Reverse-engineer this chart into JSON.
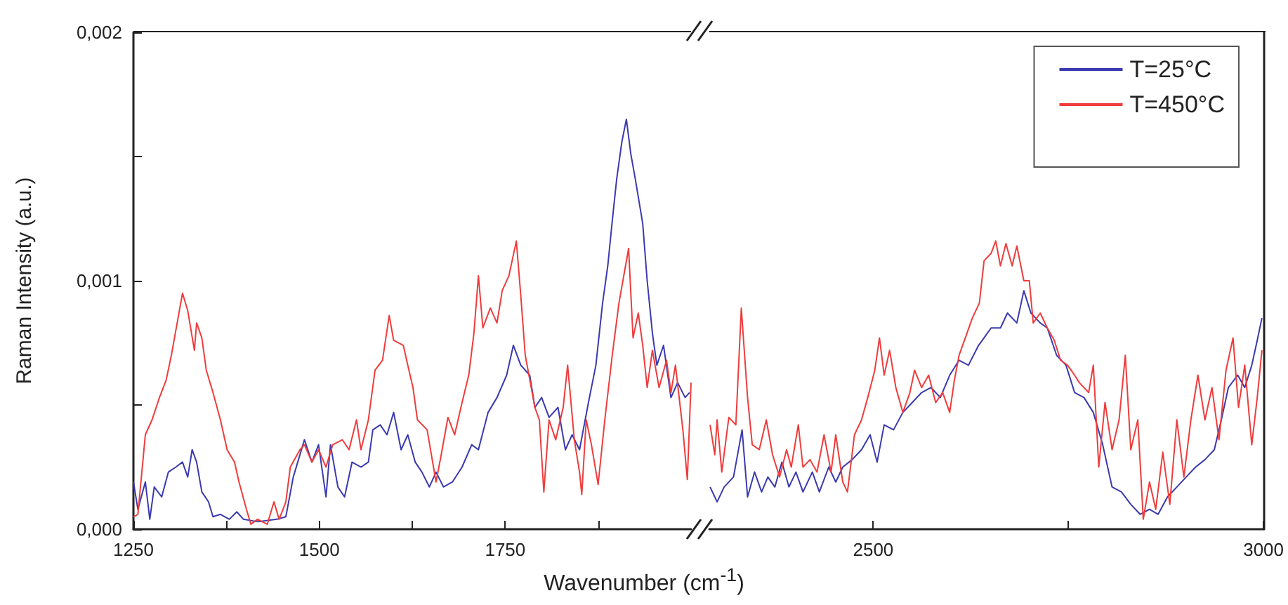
{
  "chart_data": [
    {
      "type": "line",
      "ylabel": "Raman Intensity (a.u.)",
      "xlabel": "Wavenumber (cm$^{-1}$)",
      "xlim": [
        1250,
        2000
      ],
      "xticks": [
        1250,
        {
          "value": 1375,
          "label": null
        },
        1500,
        {
          "value": 1625,
          "label": null
        },
        1750,
        {
          "value": 1875,
          "label": null
        }
      ],
      "ylim": [
        0,
        0.002
      ],
      "yticks": [
        {
          "value": 0,
          "label": "0,000"
        },
        {
          "value": 0.0005,
          "label": null
        },
        {
          "value": 0.001,
          "label": "0,001"
        },
        {
          "value": 0.0015,
          "label": null
        },
        {
          "value": 0.002,
          "label": "0,002"
        }
      ],
      "grid": false,
      "legend": false,
      "series": [
        {
          "color": "#3a3ab0",
          "x": [
            1250,
            1256,
            1266,
            1272,
            1278,
            1288,
            1297,
            1307,
            1316,
            1323,
            1329,
            1335,
            1342,
            1351,
            1357,
            1367,
            1379,
            1389,
            1398,
            1417,
            1443,
            1455,
            1465,
            1474,
            1480,
            1490,
            1499,
            1509,
            1515,
            1525,
            1534,
            1544,
            1556,
            1566,
            1572,
            1582,
            1591,
            1600,
            1610,
            1619,
            1629,
            1638,
            1648,
            1657,
            1667,
            1679,
            1692,
            1705,
            1714,
            1727,
            1739,
            1752,
            1761,
            1771,
            1783,
            1790,
            1799,
            1809,
            1821,
            1831,
            1840,
            1850,
            1862,
            1872,
            1881,
            1888,
            1894,
            1900,
            1907,
            1913,
            1919,
            1925,
            1935,
            1941,
            1948,
            1954,
            1963,
            1973,
            1982,
            1992,
            1998
          ],
          "values": [
            0.00019,
            8e-05,
            0.00019,
            4e-05,
            0.00017,
            0.00013,
            0.00023,
            0.00025,
            0.00027,
            0.00021,
            0.00032,
            0.00027,
            0.00015,
            0.00011,
            5e-05,
            6e-05,
            4e-05,
            7e-05,
            4e-05,
            3e-05,
            4e-05,
            5e-05,
            0.00021,
            0.0003,
            0.00036,
            0.00027,
            0.00034,
            0.00013,
            0.00034,
            0.00017,
            0.00013,
            0.00027,
            0.00025,
            0.00027,
            0.0004,
            0.00042,
            0.00038,
            0.00047,
            0.00032,
            0.00038,
            0.00027,
            0.00023,
            0.00017,
            0.00023,
            0.00017,
            0.00019,
            0.00025,
            0.00034,
            0.00032,
            0.00047,
            0.00053,
            0.00062,
            0.00074,
            0.00066,
            0.00062,
            0.00049,
            0.00053,
            0.00045,
            0.00049,
            0.00032,
            0.00038,
            0.00032,
            0.00051,
            0.00066,
            0.00091,
            0.00106,
            0.00124,
            0.00141,
            0.00156,
            0.00165,
            0.00151,
            0.00141,
            0.00123,
            0.001,
            0.00079,
            0.00066,
            0.00074,
            0.00053,
            0.00059,
            0.00053,
            0.00055
          ]
        },
        {
          "color": "#f03c3c",
          "x": [
            1250,
            1256,
            1266,
            1275,
            1285,
            1294,
            1301,
            1310,
            1316,
            1323,
            1332,
            1335,
            1342,
            1348,
            1357,
            1367,
            1376,
            1386,
            1392,
            1402,
            1408,
            1417,
            1430,
            1439,
            1446,
            1455,
            1461,
            1474,
            1480,
            1490,
            1499,
            1509,
            1518,
            1531,
            1540,
            1550,
            1556,
            1566,
            1575,
            1585,
            1594,
            1600,
            1613,
            1619,
            1626,
            1632,
            1645,
            1657,
            1664,
            1673,
            1682,
            1692,
            1701,
            1708,
            1714,
            1720,
            1730,
            1739,
            1746,
            1755,
            1765,
            1771,
            1777,
            1790,
            1796,
            1802,
            1809,
            1818,
            1828,
            1834,
            1843,
            1850,
            1853,
            1859,
            1866,
            1875,
            1884,
            1894,
            1903,
            1916,
            1922,
            1929,
            1935,
            1941,
            1948,
            1957,
            1967,
            1973,
            1979,
            1989,
            1995,
            2000
          ],
          "values": [
            5e-05,
            6e-05,
            0.00038,
            0.00044,
            0.00053,
            0.0006,
            0.0007,
            0.00085,
            0.00095,
            0.00088,
            0.00072,
            0.00083,
            0.00077,
            0.00064,
            0.00055,
            0.00044,
            0.00032,
            0.00027,
            0.00019,
            8e-05,
            2e-05,
            4e-05,
            2e-05,
            0.00011,
            4e-05,
            0.00011,
            0.00025,
            0.00032,
            0.00034,
            0.00027,
            0.00032,
            0.00025,
            0.00034,
            0.00036,
            0.00032,
            0.00044,
            0.00032,
            0.00044,
            0.00064,
            0.00068,
            0.00086,
            0.00076,
            0.00074,
            0.00066,
            0.00057,
            0.00044,
            0.0004,
            0.00019,
            0.0003,
            0.00045,
            0.00038,
            0.00051,
            0.00062,
            0.00079,
            0.00102,
            0.00081,
            0.00089,
            0.00083,
            0.00096,
            0.00102,
            0.00116,
            0.00094,
            0.0007,
            0.00049,
            0.00044,
            0.00015,
            0.00044,
            0.00036,
            0.00049,
            0.00066,
            0.00036,
            0.00023,
            0.00014,
            0.00044,
            0.00034,
            0.00018,
            0.00044,
            0.0007,
            0.00091,
            0.00113,
            0.00077,
            0.00087,
            0.00074,
            0.00057,
            0.00072,
            0.00057,
            0.00068,
            0.00055,
            0.00066,
            0.0004,
            0.0002,
            0.00059
          ]
        }
      ]
    },
    {
      "type": "line",
      "xlim": [
        2290,
        3000
      ],
      "xticks": [
        2500,
        {
          "value": 2750,
          "label": null
        },
        3000
      ],
      "ylim": [
        0,
        0.002
      ],
      "tick_labels": "x",
      "grid": false,
      "legend": "top right",
      "series": [
        {
          "name": "T=25°C",
          "color": "#3a3ab0",
          "x": [
            2291,
            2300,
            2309,
            2321,
            2332,
            2339,
            2348,
            2357,
            2365,
            2374,
            2383,
            2392,
            2401,
            2410,
            2422,
            2431,
            2443,
            2452,
            2461,
            2473,
            2485,
            2496,
            2505,
            2514,
            2526,
            2538,
            2550,
            2562,
            2574,
            2586,
            2598,
            2610,
            2622,
            2635,
            2642,
            2651,
            2663,
            2672,
            2684,
            2693,
            2702,
            2714,
            2723,
            2735,
            2747,
            2758,
            2770,
            2782,
            2794,
            2806,
            2818,
            2830,
            2842,
            2854,
            2865,
            2877,
            2889,
            2901,
            2913,
            2925,
            2937,
            2946,
            2955,
            2967,
            2976,
            2985,
            2992,
            2998
          ],
          "values": [
            0.00017,
            0.00011,
            0.00017,
            0.00021,
            0.0004,
            0.00013,
            0.00023,
            0.00015,
            0.00021,
            0.00017,
            0.00027,
            0.00017,
            0.00023,
            0.00015,
            0.00023,
            0.00015,
            0.00025,
            0.00019,
            0.00025,
            0.00028,
            0.00032,
            0.00038,
            0.00027,
            0.00042,
            0.0004,
            0.00047,
            0.00051,
            0.00055,
            0.00057,
            0.00053,
            0.00062,
            0.00068,
            0.00066,
            0.00074,
            0.00077,
            0.00081,
            0.00081,
            0.00087,
            0.00083,
            0.00096,
            0.00087,
            0.00083,
            0.00081,
            0.0007,
            0.00066,
            0.00055,
            0.00053,
            0.00047,
            0.00034,
            0.00017,
            0.00015,
            0.0001,
            6e-05,
            8e-05,
            6e-05,
            0.00013,
            0.00017,
            0.00021,
            0.00025,
            0.00028,
            0.00032,
            0.00044,
            0.00057,
            0.00062,
            0.00057,
            0.00066,
            0.00076,
            0.00085
          ]
        },
        {
          "name": "T=450°C",
          "color": "#f03c3c",
          "x": [
            2291,
            2297,
            2300,
            2306,
            2315,
            2324,
            2331,
            2339,
            2345,
            2354,
            2363,
            2371,
            2380,
            2389,
            2395,
            2404,
            2410,
            2419,
            2428,
            2437,
            2446,
            2452,
            2461,
            2467,
            2476,
            2485,
            2493,
            2502,
            2508,
            2514,
            2521,
            2529,
            2538,
            2547,
            2553,
            2562,
            2571,
            2580,
            2589,
            2598,
            2604,
            2610,
            2618,
            2627,
            2636,
            2642,
            2651,
            2657,
            2663,
            2670,
            2678,
            2684,
            2693,
            2700,
            2705,
            2714,
            2723,
            2732,
            2740,
            2749,
            2758,
            2764,
            2776,
            2782,
            2789,
            2797,
            2806,
            2815,
            2823,
            2830,
            2839,
            2846,
            2854,
            2862,
            2871,
            2880,
            2889,
            2898,
            2907,
            2916,
            2925,
            2934,
            2943,
            2952,
            2961,
            2968,
            2976,
            2985,
            2992,
            2998
          ],
          "values": [
            0.00042,
            0.0003,
            0.00044,
            0.00023,
            0.00045,
            0.00042,
            0.00089,
            0.00053,
            0.00034,
            0.00032,
            0.00044,
            0.0003,
            0.00021,
            0.00032,
            0.00025,
            0.00042,
            0.00025,
            0.00028,
            0.00023,
            0.00038,
            0.00023,
            0.00038,
            0.00019,
            0.00015,
            0.00038,
            0.00044,
            0.00053,
            0.00064,
            0.00077,
            0.00062,
            0.00072,
            0.00057,
            0.00047,
            0.00055,
            0.00064,
            0.00057,
            0.00062,
            0.00051,
            0.00055,
            0.00047,
            0.0006,
            0.0007,
            0.00077,
            0.00085,
            0.00091,
            0.00108,
            0.00111,
            0.00116,
            0.00106,
            0.00115,
            0.00106,
            0.00114,
            0.001,
            0.001,
            0.00083,
            0.00087,
            0.00081,
            0.00076,
            0.00068,
            0.00066,
            0.00062,
            0.00059,
            0.00055,
            0.00066,
            0.00025,
            0.00051,
            0.00032,
            0.00044,
            0.0007,
            0.00032,
            0.00044,
            4e-05,
            0.00019,
            8e-05,
            0.00031,
            0.0001,
            0.00044,
            0.00021,
            0.00044,
            0.00062,
            0.00044,
            0.00057,
            0.00036,
            0.00064,
            0.00077,
            0.00049,
            0.00066,
            0.00034,
            0.00053,
            0.00072
          ]
        }
      ]
    }
  ]
}
